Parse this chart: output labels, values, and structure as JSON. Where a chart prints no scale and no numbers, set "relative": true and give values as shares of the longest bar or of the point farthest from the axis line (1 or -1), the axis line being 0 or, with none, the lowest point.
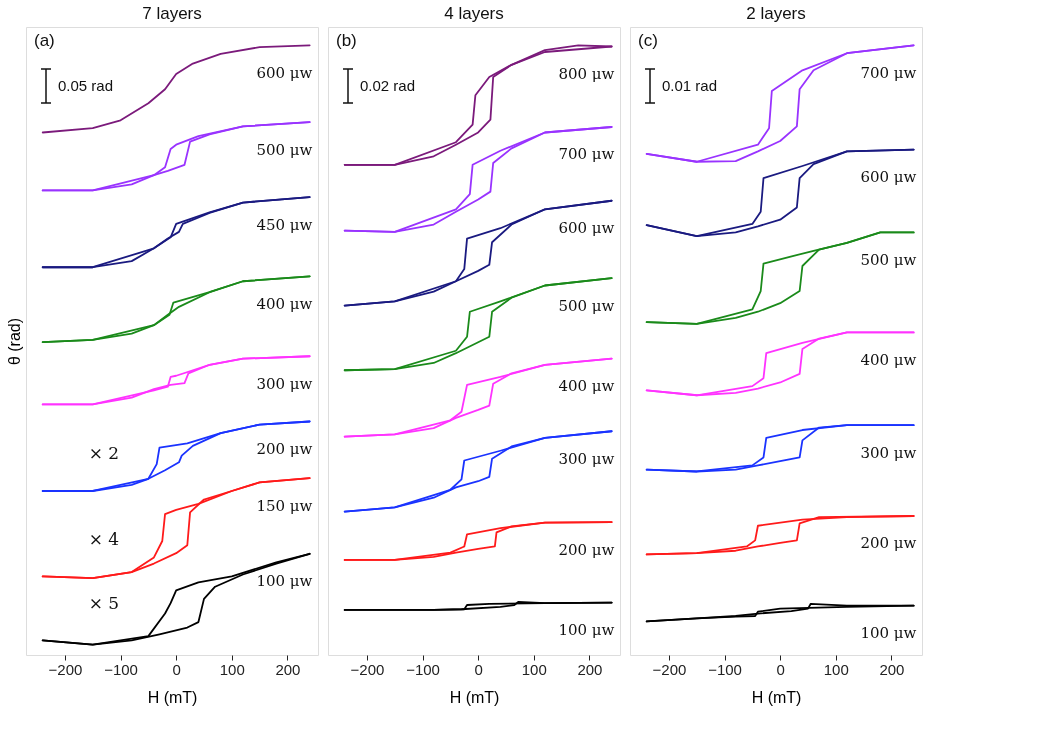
{
  "chart_data": [
    {
      "type": "line",
      "title": "7 layers",
      "xlabel": "H (mT)",
      "ylabel": "θ (rad)",
      "relative": true,
      "xlim": [
        -270,
        255
      ],
      "xticks": [
        -200,
        -100,
        0,
        100,
        200
      ],
      "tick_labels": "x",
      "grid": false,
      "legend": false,
      "line_style": "solid",
      "marker": "none",
      "annotations": [
        "(a)",
        "0.05 rad",
        "× 2",
        "× 4",
        "× 5"
      ],
      "series": [
        {
          "name": "600 μw",
          "color": "#7b1a7b",
          "x": [
            -240,
            -150,
            -100,
            -50,
            -20,
            0,
            30,
            80,
            150,
            240
          ],
          "values": [
            0.857,
            0.864,
            0.877,
            0.905,
            0.928,
            0.953,
            0.97,
            0.986,
            0.997,
            1.0
          ]
        },
        {
          "name": "500 μw",
          "color": "#9933ff",
          "x": [
            -240,
            -150,
            -80,
            -40,
            -15,
            15,
            25,
            60,
            120,
            240
          ],
          "values": [
            0.762,
            0.762,
            0.772,
            0.787,
            0.794,
            0.804,
            0.842,
            0.854,
            0.867,
            0.874
          ]
        },
        {
          "color": "#9933ff",
          "x": [
            -240,
            -150,
            -40,
            -20,
            -10,
            0,
            40,
            120,
            240
          ],
          "values": [
            0.762,
            0.762,
            0.787,
            0.8,
            0.83,
            0.837,
            0.851,
            0.867,
            0.874
          ]
        },
        {
          "name": "450 μw",
          "color": "#1a1a80",
          "x": [
            -240,
            -150,
            -80,
            -40,
            -15,
            5,
            12,
            60,
            120,
            240
          ],
          "values": [
            0.636,
            0.636,
            0.646,
            0.667,
            0.683,
            0.694,
            0.707,
            0.725,
            0.742,
            0.751
          ]
        },
        {
          "color": "#1a1a80",
          "x": [
            -240,
            -150,
            -40,
            -10,
            0,
            60,
            120,
            240
          ],
          "values": [
            0.636,
            0.636,
            0.667,
            0.685,
            0.707,
            0.726,
            0.742,
            0.751
          ]
        },
        {
          "name": "400 μw",
          "color": "#1a8a1a",
          "x": [
            -240,
            -150,
            -80,
            -40,
            -15,
            5,
            60,
            120,
            240
          ],
          "values": [
            0.513,
            0.517,
            0.527,
            0.541,
            0.558,
            0.571,
            0.595,
            0.613,
            0.621
          ]
        },
        {
          "color": "#1a8a1a",
          "x": [
            -240,
            -150,
            -40,
            -12,
            -5,
            60,
            120,
            240
          ],
          "values": [
            0.513,
            0.517,
            0.541,
            0.558,
            0.578,
            0.595,
            0.613,
            0.621
          ]
        },
        {
          "name": "300 μw",
          "color": "#ff33ff",
          "x": [
            -240,
            -150,
            -80,
            -40,
            -10,
            15,
            22,
            60,
            120,
            240
          ],
          "values": [
            0.411,
            0.411,
            0.422,
            0.436,
            0.443,
            0.446,
            0.462,
            0.476,
            0.486,
            0.49
          ]
        },
        {
          "color": "#ff33ff",
          "x": [
            -240,
            -150,
            -40,
            -15,
            -10,
            0,
            60,
            120,
            240
          ],
          "values": [
            0.411,
            0.411,
            0.434,
            0.44,
            0.456,
            0.458,
            0.476,
            0.486,
            0.49
          ]
        },
        {
          "name": "200 μw",
          "color": "#1a33ff",
          "x": [
            -240,
            -150,
            -80,
            -50,
            -20,
            5,
            10,
            30,
            80,
            150,
            240
          ],
          "values": [
            0.269,
            0.269,
            0.279,
            0.289,
            0.303,
            0.316,
            0.327,
            0.343,
            0.364,
            0.378,
            0.383
          ]
        },
        {
          "color": "#1a33ff",
          "x": [
            -240,
            -150,
            -50,
            -35,
            -30,
            20,
            80,
            150,
            240
          ],
          "values": [
            0.269,
            0.269,
            0.289,
            0.313,
            0.34,
            0.347,
            0.364,
            0.378,
            0.383
          ]
        },
        {
          "name": "150 μw",
          "color": "#ff1a1a",
          "x": [
            -240,
            -150,
            -80,
            -40,
            0,
            20,
            25,
            50,
            100,
            150,
            240
          ],
          "values": [
            0.129,
            0.126,
            0.136,
            0.15,
            0.167,
            0.18,
            0.234,
            0.255,
            0.269,
            0.283,
            0.29
          ]
        },
        {
          "color": "#ff1a1a",
          "x": [
            -240,
            -150,
            -80,
            -40,
            -25,
            -20,
            0,
            40,
            100,
            150,
            240
          ],
          "values": [
            0.129,
            0.126,
            0.136,
            0.16,
            0.187,
            0.231,
            0.238,
            0.248,
            0.269,
            0.283,
            0.29
          ]
        },
        {
          "name": "100 μw",
          "color": "#000000",
          "x": [
            -240,
            -150,
            -80,
            -30,
            20,
            40,
            50,
            70,
            120,
            180,
            240
          ],
          "values": [
            0.024,
            0.017,
            0.024,
            0.034,
            0.045,
            0.054,
            0.092,
            0.112,
            0.132,
            0.15,
            0.166
          ]
        },
        {
          "color": "#000000",
          "x": [
            -240,
            -150,
            -50,
            -20,
            -10,
            0,
            40,
            100,
            180,
            240
          ],
          "values": [
            0.024,
            0.017,
            0.031,
            0.068,
            0.085,
            0.106,
            0.119,
            0.129,
            0.152,
            0.166
          ]
        }
      ]
    },
    {
      "type": "line",
      "title": "4 layers",
      "xlabel": "H (mT)",
      "relative": true,
      "xlim": [
        -270,
        255
      ],
      "xticks": [
        -200,
        -100,
        0,
        100,
        200
      ],
      "tick_labels": "x",
      "grid": false,
      "legend": false,
      "line_style": "solid",
      "marker": "none",
      "annotations": [
        "(b)",
        "0.02 rad"
      ],
      "series": [
        {
          "name": "800 μw",
          "color": "#7b1a7b",
          "x": [
            -240,
            -150,
            -80,
            -40,
            0,
            22,
            27,
            60,
            120,
            180,
            240
          ],
          "values": [
            0.804,
            0.804,
            0.818,
            0.837,
            0.857,
            0.878,
            0.948,
            0.968,
            0.992,
            1.0,
            0.998
          ]
        },
        {
          "color": "#7b1a7b",
          "x": [
            -240,
            -150,
            -40,
            -10,
            -5,
            20,
            60,
            120,
            240
          ],
          "values": [
            0.804,
            0.804,
            0.841,
            0.87,
            0.918,
            0.948,
            0.968,
            0.989,
            0.998
          ]
        },
        {
          "name": "700 μw",
          "color": "#9933ff",
          "x": [
            -240,
            -150,
            -80,
            -40,
            0,
            22,
            27,
            60,
            120,
            240
          ],
          "values": [
            0.696,
            0.694,
            0.706,
            0.727,
            0.747,
            0.76,
            0.807,
            0.831,
            0.857,
            0.866
          ]
        },
        {
          "color": "#9933ff",
          "x": [
            -240,
            -150,
            -40,
            -15,
            -10,
            40,
            120,
            240
          ],
          "values": [
            0.696,
            0.694,
            0.731,
            0.756,
            0.804,
            0.827,
            0.857,
            0.866
          ]
        },
        {
          "name": "600 μw",
          "color": "#1a1a80",
          "x": [
            -240,
            -150,
            -80,
            -40,
            0,
            20,
            25,
            60,
            120,
            240
          ],
          "values": [
            0.573,
            0.58,
            0.596,
            0.613,
            0.63,
            0.64,
            0.677,
            0.706,
            0.731,
            0.745
          ]
        },
        {
          "color": "#1a1a80",
          "x": [
            -240,
            -150,
            -40,
            -25,
            -20,
            40,
            120,
            240
          ],
          "values": [
            0.573,
            0.58,
            0.613,
            0.633,
            0.683,
            0.7,
            0.731,
            0.745
          ]
        },
        {
          "name": "500 μw",
          "color": "#1a8a1a",
          "x": [
            -240,
            -150,
            -80,
            -40,
            0,
            20,
            25,
            60,
            120,
            240
          ],
          "values": [
            0.467,
            0.469,
            0.479,
            0.495,
            0.513,
            0.522,
            0.563,
            0.586,
            0.606,
            0.618
          ]
        },
        {
          "color": "#1a8a1a",
          "x": [
            -240,
            -150,
            -40,
            -20,
            -15,
            40,
            120,
            240
          ],
          "values": [
            0.467,
            0.469,
            0.499,
            0.522,
            0.563,
            0.58,
            0.606,
            0.618
          ]
        },
        {
          "name": "400 μw",
          "color": "#ff33ff",
          "x": [
            -240,
            -150,
            -80,
            -40,
            0,
            20,
            27,
            60,
            120,
            240
          ],
          "values": [
            0.358,
            0.362,
            0.372,
            0.389,
            0.402,
            0.409,
            0.445,
            0.462,
            0.476,
            0.486
          ]
        },
        {
          "color": "#ff33ff",
          "x": [
            -240,
            -150,
            -50,
            -30,
            -20,
            40,
            120,
            240
          ],
          "values": [
            0.358,
            0.362,
            0.385,
            0.399,
            0.443,
            0.456,
            0.476,
            0.486
          ]
        },
        {
          "name": "300 μw",
          "color": "#1a33ff",
          "x": [
            -240,
            -150,
            -80,
            -40,
            0,
            20,
            25,
            60,
            120,
            240
          ],
          "values": [
            0.235,
            0.242,
            0.258,
            0.275,
            0.285,
            0.292,
            0.322,
            0.342,
            0.356,
            0.367
          ]
        },
        {
          "color": "#1a33ff",
          "x": [
            -240,
            -150,
            -50,
            -30,
            -25,
            40,
            120,
            240
          ],
          "values": [
            0.235,
            0.242,
            0.271,
            0.288,
            0.319,
            0.335,
            0.356,
            0.367
          ]
        },
        {
          "name": "200 μw",
          "color": "#ff1a1a",
          "x": [
            -240,
            -150,
            -80,
            -40,
            0,
            30,
            33,
            60,
            120,
            240
          ],
          "values": [
            0.156,
            0.156,
            0.161,
            0.168,
            0.174,
            0.178,
            0.201,
            0.211,
            0.217,
            0.218
          ]
        },
        {
          "color": "#ff1a1a",
          "x": [
            -240,
            -150,
            -50,
            -25,
            -20,
            40,
            120,
            240
          ],
          "values": [
            0.156,
            0.156,
            0.168,
            0.178,
            0.198,
            0.208,
            0.217,
            0.218
          ]
        },
        {
          "name": "100 μw",
          "color": "#000000",
          "x": [
            -240,
            -80,
            -30,
            40,
            65,
            72,
            120,
            240
          ],
          "values": [
            0.074,
            0.074,
            0.075,
            0.079,
            0.082,
            0.087,
            0.085,
            0.086
          ]
        },
        {
          "color": "#000000",
          "x": [
            -240,
            -80,
            -25,
            -20,
            20,
            120,
            240
          ],
          "values": [
            0.074,
            0.074,
            0.075,
            0.082,
            0.084,
            0.085,
            0.086
          ]
        }
      ]
    },
    {
      "type": "line",
      "title": "2 layers",
      "xlabel": "H (mT)",
      "relative": true,
      "xlim": [
        -270,
        255
      ],
      "xticks": [
        -200,
        -100,
        0,
        100,
        200
      ],
      "tick_labels": "x",
      "grid": false,
      "legend": false,
      "line_style": "solid",
      "marker": "none",
      "annotations": [
        "(c)",
        "0.01 rad"
      ],
      "series": [
        {
          "name": "700 μw",
          "color": "#9933ff",
          "x": [
            -240,
            -150,
            -80,
            -40,
            0,
            30,
            35,
            60,
            120,
            240
          ],
          "values": [
            0.822,
            0.809,
            0.81,
            0.826,
            0.843,
            0.867,
            0.928,
            0.959,
            0.987,
            1.0
          ]
        },
        {
          "color": "#9933ff",
          "x": [
            -240,
            -150,
            -40,
            -20,
            -15,
            40,
            120,
            240
          ],
          "values": [
            0.822,
            0.809,
            0.837,
            0.864,
            0.925,
            0.959,
            0.987,
            1.0
          ]
        },
        {
          "name": "600 μw",
          "color": "#1a1a80",
          "x": [
            -240,
            -150,
            -80,
            -40,
            0,
            30,
            35,
            60,
            120,
            240
          ],
          "values": [
            0.705,
            0.687,
            0.693,
            0.703,
            0.714,
            0.734,
            0.782,
            0.805,
            0.826,
            0.829
          ]
        },
        {
          "color": "#1a1a80",
          "x": [
            -240,
            -150,
            -50,
            -35,
            -30,
            40,
            120,
            240
          ],
          "values": [
            0.705,
            0.687,
            0.707,
            0.727,
            0.782,
            0.802,
            0.826,
            0.829
          ]
        },
        {
          "name": "500 μw",
          "color": "#1a8a1a",
          "x": [
            -240,
            -150,
            -80,
            -40,
            0,
            35,
            40,
            70,
            120,
            180,
            240
          ],
          "values": [
            0.546,
            0.543,
            0.553,
            0.563,
            0.577,
            0.597,
            0.638,
            0.665,
            0.676,
            0.693,
            0.693
          ]
        },
        {
          "color": "#1a8a1a",
          "x": [
            -240,
            -150,
            -50,
            -35,
            -30,
            60,
            120,
            180,
            240
          ],
          "values": [
            0.546,
            0.543,
            0.567,
            0.597,
            0.642,
            0.663,
            0.676,
            0.693,
            0.693
          ]
        },
        {
          "name": "400 μw",
          "color": "#ff33ff",
          "x": [
            -240,
            -150,
            -80,
            -40,
            0,
            35,
            40,
            70,
            120,
            240
          ],
          "values": [
            0.434,
            0.426,
            0.43,
            0.437,
            0.447,
            0.461,
            0.502,
            0.519,
            0.529,
            0.529
          ]
        },
        {
          "color": "#ff33ff",
          "x": [
            -240,
            -150,
            -50,
            -30,
            -25,
            40,
            120,
            240
          ],
          "values": [
            0.434,
            0.426,
            0.441,
            0.454,
            0.495,
            0.512,
            0.529,
            0.529
          ]
        },
        {
          "name": "300 μw",
          "color": "#1a33ff",
          "x": [
            -240,
            -150,
            -80,
            -40,
            0,
            35,
            40,
            70,
            120,
            240
          ],
          "values": [
            0.304,
            0.301,
            0.304,
            0.311,
            0.318,
            0.324,
            0.352,
            0.373,
            0.377,
            0.377
          ]
        },
        {
          "color": "#1a33ff",
          "x": [
            -240,
            -150,
            -50,
            -30,
            -25,
            40,
            120,
            240
          ],
          "values": [
            0.304,
            0.301,
            0.311,
            0.324,
            0.356,
            0.369,
            0.377,
            0.377
          ]
        },
        {
          "name": "200 μw",
          "color": "#ff1a1a",
          "x": [
            -240,
            -150,
            -80,
            -40,
            0,
            30,
            35,
            70,
            240
          ],
          "values": [
            0.165,
            0.167,
            0.171,
            0.178,
            0.184,
            0.188,
            0.216,
            0.226,
            0.228
          ]
        },
        {
          "color": "#ff1a1a",
          "x": [
            -240,
            -150,
            -60,
            -45,
            -40,
            40,
            120,
            240
          ],
          "values": [
            0.165,
            0.167,
            0.178,
            0.188,
            0.212,
            0.222,
            0.226,
            0.228
          ]
        },
        {
          "name": "100 μw",
          "color": "#000000",
          "x": [
            -240,
            -150,
            -80,
            -40,
            20,
            50,
            55,
            120,
            240
          ],
          "values": [
            0.055,
            0.06,
            0.064,
            0.068,
            0.072,
            0.076,
            0.084,
            0.081,
            0.081
          ]
        },
        {
          "color": "#000000",
          "x": [
            -240,
            -150,
            -80,
            -45,
            -40,
            0,
            120,
            240
          ],
          "values": [
            0.055,
            0.06,
            0.063,
            0.064,
            0.071,
            0.076,
            0.079,
            0.081
          ]
        }
      ]
    }
  ]
}
